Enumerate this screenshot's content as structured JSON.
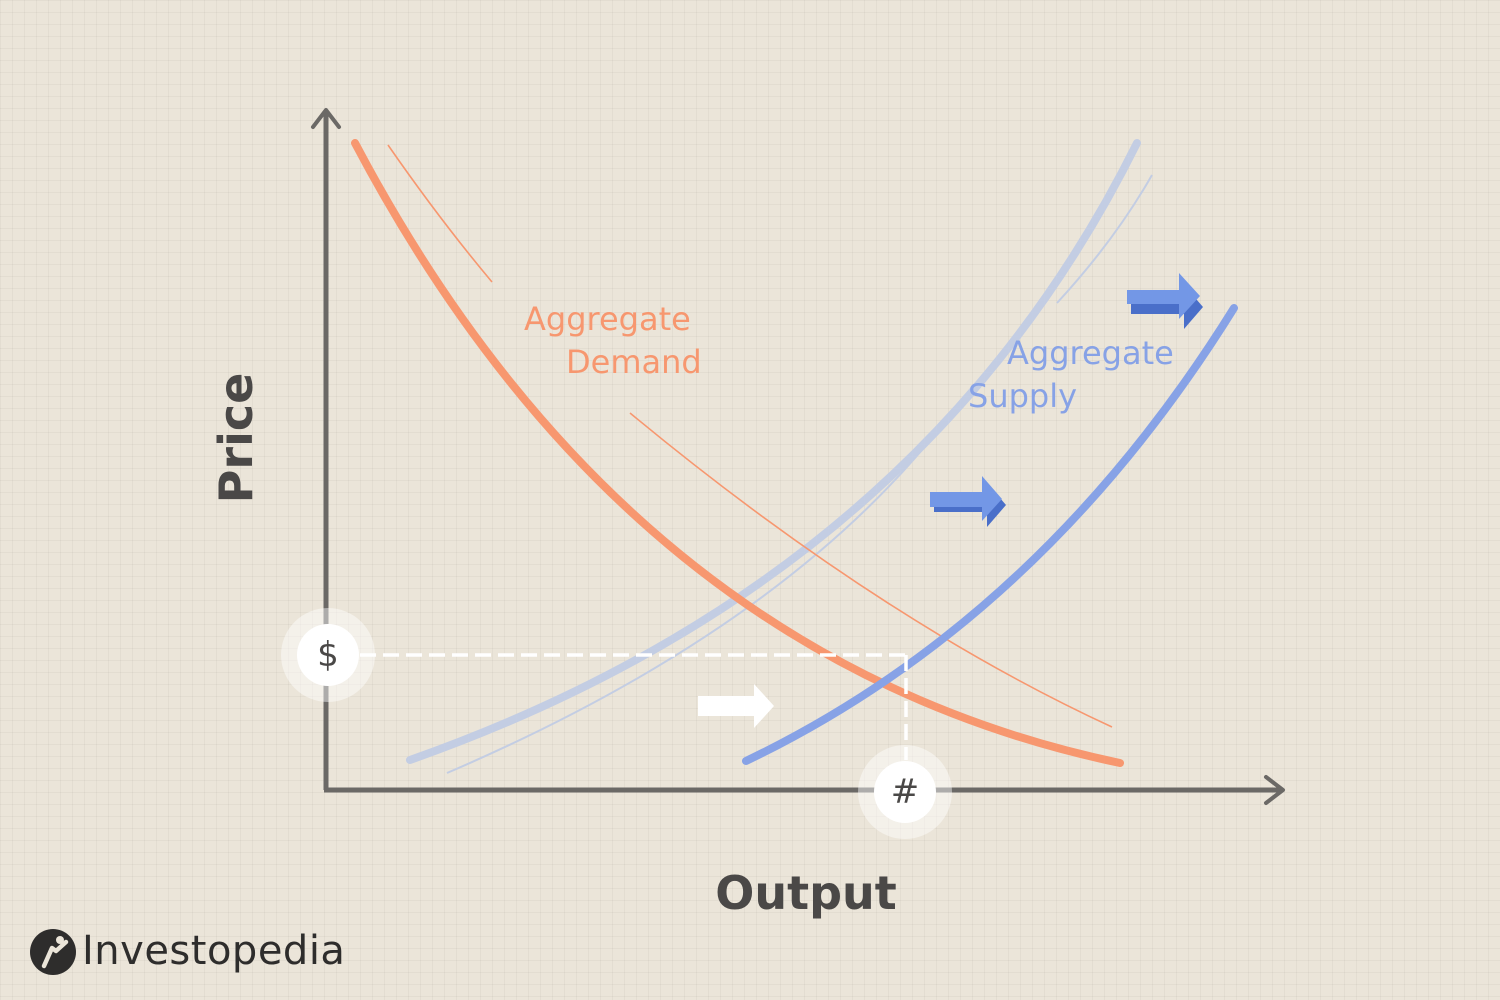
{
  "diagram": {
    "axes": {
      "y_label": "Price",
      "x_label": "Output"
    },
    "curves": {
      "demand": {
        "label_line1": "Aggregate",
        "label_line2": "Demand",
        "color": "#f7976f"
      },
      "supply": {
        "label_line1": "Aggregate",
        "label_line2": "Supply",
        "color": "#87a2e6",
        "original_color": "#c3cde3"
      }
    },
    "markers": {
      "price": "$",
      "output": "#"
    },
    "shift_arrows": {
      "direction": "right",
      "count": 3,
      "colors": [
        "#ffffff",
        "#6f92e2",
        "#6f92e2"
      ]
    }
  },
  "branding": {
    "name": "Investopedia",
    "logo_icon": "investopedia-logo-icon"
  }
}
